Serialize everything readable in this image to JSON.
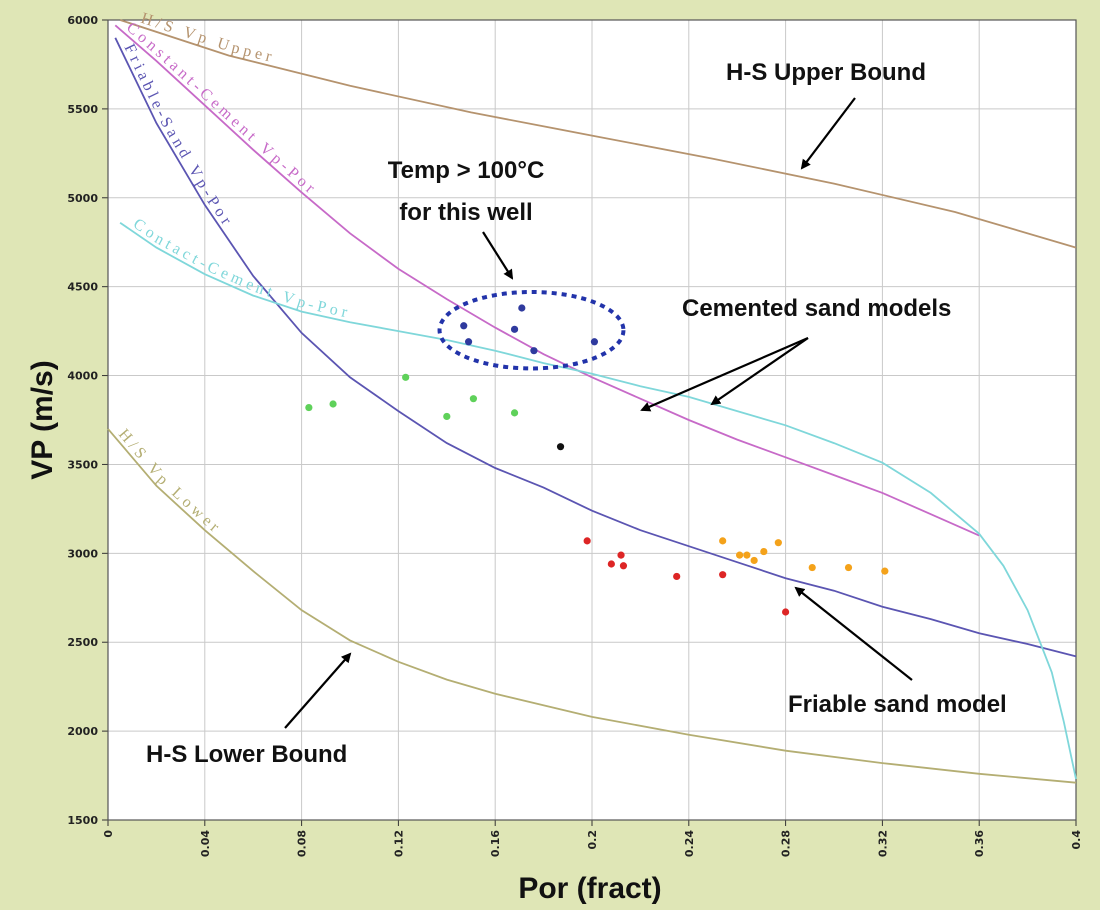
{
  "chart_data": {
    "type": "scatter",
    "title": "",
    "xlabel": "Por (fract)",
    "ylabel": "VP (m/s)",
    "xlim": [
      0,
      0.4
    ],
    "ylim": [
      1500,
      6000
    ],
    "x_ticks": [
      "0",
      "0.04",
      "0.08",
      "0.12",
      "0.16",
      "0.2",
      "0.24",
      "0.28",
      "0.32",
      "0.36",
      "0.4"
    ],
    "y_ticks": [
      "1500",
      "2000",
      "2500",
      "3000",
      "3500",
      "4000",
      "4500",
      "5000",
      "5500",
      "6000"
    ],
    "grid": true,
    "colors": {
      "hs_upper": "#b5936e",
      "hs_lower": "#b4ae73",
      "constant_cement": "#c76ac8",
      "friable_sand": "#5b55b2",
      "contact_cement": "#7fd7da",
      "blue_points": "#2f3a9e",
      "green_points": "#5fd15a",
      "black_points": "#111111",
      "red_points": "#dd2525",
      "orange_points": "#f4a21a",
      "plot_bg": "#ffffff",
      "page_bg": "#dfe6b6"
    },
    "series": [
      {
        "name": "H-S Vp Upper",
        "kind": "line",
        "color_key": "hs_upper",
        "points": [
          [
            0.005,
            6000
          ],
          [
            0.05,
            5800
          ],
          [
            0.1,
            5630
          ],
          [
            0.15,
            5480
          ],
          [
            0.2,
            5350
          ],
          [
            0.25,
            5220
          ],
          [
            0.3,
            5080
          ],
          [
            0.35,
            4920
          ],
          [
            0.4,
            4720
          ]
        ]
      },
      {
        "name": "Constant-Cement Vp-Por",
        "kind": "line",
        "color_key": "constant_cement",
        "points": [
          [
            0.003,
            5970
          ],
          [
            0.02,
            5770
          ],
          [
            0.04,
            5520
          ],
          [
            0.06,
            5270
          ],
          [
            0.08,
            5030
          ],
          [
            0.1,
            4800
          ],
          [
            0.12,
            4600
          ],
          [
            0.14,
            4430
          ],
          [
            0.16,
            4270
          ],
          [
            0.18,
            4120
          ],
          [
            0.2,
            3990
          ],
          [
            0.22,
            3870
          ],
          [
            0.24,
            3750
          ],
          [
            0.26,
            3640
          ],
          [
            0.28,
            3540
          ],
          [
            0.3,
            3440
          ],
          [
            0.32,
            3340
          ],
          [
            0.34,
            3220
          ],
          [
            0.36,
            3100
          ]
        ]
      },
      {
        "name": "Friable-Sand Vp-Por",
        "kind": "line",
        "color_key": "friable_sand",
        "points": [
          [
            0.003,
            5900
          ],
          [
            0.02,
            5420
          ],
          [
            0.04,
            4960
          ],
          [
            0.06,
            4560
          ],
          [
            0.08,
            4240
          ],
          [
            0.1,
            3990
          ],
          [
            0.12,
            3800
          ],
          [
            0.14,
            3620
          ],
          [
            0.16,
            3480
          ],
          [
            0.18,
            3370
          ],
          [
            0.2,
            3240
          ],
          [
            0.22,
            3130
          ],
          [
            0.24,
            3040
          ],
          [
            0.26,
            2950
          ],
          [
            0.28,
            2860
          ],
          [
            0.3,
            2790
          ],
          [
            0.32,
            2700
          ],
          [
            0.34,
            2630
          ],
          [
            0.36,
            2550
          ],
          [
            0.38,
            2490
          ],
          [
            0.4,
            2420
          ]
        ]
      },
      {
        "name": "Contact-Cement Vp-Por",
        "kind": "line",
        "color_key": "contact_cement",
        "points": [
          [
            0.005,
            4860
          ],
          [
            0.02,
            4720
          ],
          [
            0.04,
            4570
          ],
          [
            0.06,
            4450
          ],
          [
            0.08,
            4360
          ],
          [
            0.1,
            4300
          ],
          [
            0.12,
            4250
          ],
          [
            0.14,
            4200
          ],
          [
            0.16,
            4140
          ],
          [
            0.18,
            4070
          ],
          [
            0.2,
            4010
          ],
          [
            0.22,
            3940
          ],
          [
            0.24,
            3880
          ],
          [
            0.26,
            3800
          ],
          [
            0.28,
            3720
          ],
          [
            0.3,
            3620
          ],
          [
            0.32,
            3510
          ],
          [
            0.34,
            3340
          ],
          [
            0.36,
            3110
          ],
          [
            0.37,
            2930
          ],
          [
            0.38,
            2680
          ],
          [
            0.39,
            2330
          ],
          [
            0.395,
            2050
          ],
          [
            0.4,
            1730
          ]
        ]
      },
      {
        "name": "H/S Vp Lower",
        "kind": "line",
        "color_key": "hs_lower",
        "points": [
          [
            0.0,
            3700
          ],
          [
            0.02,
            3380
          ],
          [
            0.04,
            3130
          ],
          [
            0.06,
            2900
          ],
          [
            0.08,
            2680
          ],
          [
            0.1,
            2510
          ],
          [
            0.12,
            2390
          ],
          [
            0.14,
            2290
          ],
          [
            0.16,
            2210
          ],
          [
            0.2,
            2080
          ],
          [
            0.24,
            1980
          ],
          [
            0.28,
            1890
          ],
          [
            0.32,
            1820
          ],
          [
            0.36,
            1760
          ],
          [
            0.4,
            1710
          ]
        ]
      },
      {
        "name": "",
        "kind": "points",
        "color_key": "blue_points",
        "points": [
          [
            0.147,
            4280
          ],
          [
            0.149,
            4190
          ],
          [
            0.168,
            4260
          ],
          [
            0.171,
            4380
          ],
          [
            0.176,
            4140
          ],
          [
            0.201,
            4190
          ]
        ]
      },
      {
        "name": "",
        "kind": "points",
        "color_key": "green_points",
        "points": [
          [
            0.083,
            3820
          ],
          [
            0.093,
            3840
          ],
          [
            0.123,
            3990
          ],
          [
            0.14,
            3770
          ],
          [
            0.151,
            3870
          ],
          [
            0.168,
            3790
          ]
        ]
      },
      {
        "name": "",
        "kind": "points",
        "color_key": "black_points",
        "points": [
          [
            0.187,
            3600
          ]
        ]
      },
      {
        "name": "",
        "kind": "points",
        "color_key": "red_points",
        "points": [
          [
            0.198,
            3070
          ],
          [
            0.208,
            2940
          ],
          [
            0.212,
            2990
          ],
          [
            0.213,
            2930
          ],
          [
            0.235,
            2870
          ],
          [
            0.254,
            2880
          ],
          [
            0.28,
            2670
          ]
        ]
      },
      {
        "name": "",
        "kind": "points",
        "color_key": "orange_points",
        "points": [
          [
            0.254,
            3070
          ],
          [
            0.261,
            2990
          ],
          [
            0.264,
            2990
          ],
          [
            0.267,
            2960
          ],
          [
            0.271,
            3010
          ],
          [
            0.277,
            3060
          ],
          [
            0.291,
            2920
          ],
          [
            0.306,
            2920
          ],
          [
            0.321,
            2900
          ]
        ]
      }
    ],
    "curve_labels": [
      {
        "text": "H/S Vp Upper",
        "color_key": "hs_upper"
      },
      {
        "text": "Constant-Cement Vp-Por",
        "color_key": "constant_cement"
      },
      {
        "text": "Friable-Sand Vp-Por",
        "color_key": "friable_sand"
      },
      {
        "text": "Contact-Cement Vp-Por",
        "color_key": "contact_cement"
      },
      {
        "text": "H/S Vp Lower",
        "color_key": "hs_lower"
      }
    ],
    "annotations": {
      "hs_upper": "H-S Upper Bound",
      "temp_line1": "Temp > 100°C",
      "temp_line2": "for this well",
      "cemented": "Cemented sand models",
      "friable": "Friable sand model",
      "hs_lower": "H-S Lower Bound"
    },
    "highlight_ellipse": {
      "cx": 0.175,
      "cy": 4255,
      "rx": 0.038,
      "ry": 215
    }
  }
}
